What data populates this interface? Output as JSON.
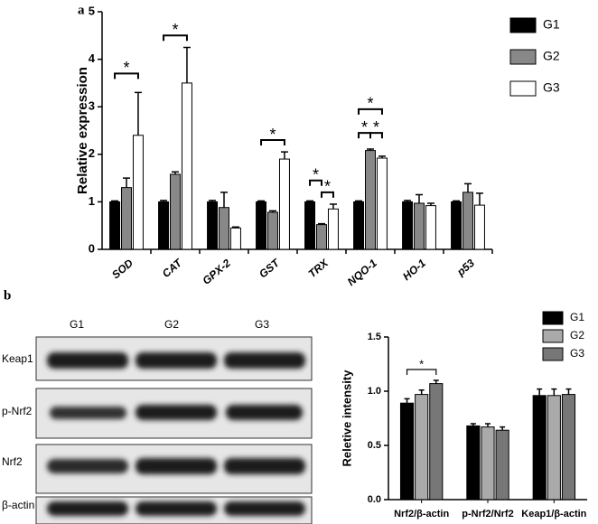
{
  "panels": [
    "a",
    "b"
  ],
  "blot": {
    "columns": [
      "G1",
      "G2",
      "G3"
    ],
    "rows": [
      "Keap1",
      "p-Nrf2",
      "Nrf2",
      "β-actin"
    ]
  },
  "chart_data": [
    {
      "type": "bar",
      "ylabel": "Relative expression",
      "categories": [
        "SOD",
        "CAT",
        "GPX-2",
        "GST",
        "TRX",
        "NQO-1",
        "HO-1",
        "p53"
      ],
      "series": [
        {
          "name": "G1",
          "color": "#000000",
          "values": [
            1.0,
            1.0,
            1.0,
            1.0,
            1.0,
            1.0,
            1.0,
            1.0
          ],
          "errors": [
            0.02,
            0.03,
            0.03,
            0.02,
            0.02,
            0.02,
            0.03,
            0.02
          ]
        },
        {
          "name": "G2",
          "color": "#888888",
          "values": [
            1.3,
            1.58,
            0.88,
            0.78,
            0.52,
            2.08,
            0.97,
            1.2
          ],
          "errors": [
            0.2,
            0.05,
            0.32,
            0.03,
            0.02,
            0.03,
            0.18,
            0.18
          ]
        },
        {
          "name": "G3",
          "color": "#ffffff",
          "values": [
            2.4,
            3.5,
            0.45,
            1.9,
            0.85,
            1.92,
            0.92,
            0.93
          ],
          "errors": [
            0.9,
            0.75,
            0.02,
            0.15,
            0.1,
            0.04,
            0.05,
            0.25
          ]
        }
      ],
      "ylim": [
        0,
        5
      ],
      "yticks": [
        0,
        1,
        2,
        3,
        4,
        5
      ],
      "significance": [
        {
          "category": "SOD",
          "from": "G1",
          "to": "G3",
          "y": 3.7,
          "label": "*"
        },
        {
          "category": "CAT",
          "from": "G1",
          "to": "G3",
          "y": 4.5,
          "label": "*"
        },
        {
          "category": "GST",
          "from": "G1",
          "to": "G3",
          "y": 2.3,
          "label": "*"
        },
        {
          "category": "TRX",
          "from": "G1",
          "to": "G2",
          "y": 1.45,
          "label": "*"
        },
        {
          "category": "TRX",
          "from": "G2",
          "to": "G3",
          "y": 1.2,
          "label": "*"
        },
        {
          "category": "NQO-1",
          "from": "G1",
          "to": "G2",
          "y": 2.45,
          "label": "*"
        },
        {
          "category": "NQO-1",
          "from": "G2",
          "to": "G3",
          "y": 2.45,
          "label": "*"
        },
        {
          "category": "NQO-1",
          "from": "G1",
          "to": "G3",
          "y": 2.95,
          "label": "*"
        }
      ]
    },
    {
      "type": "bar",
      "ylabel": "Reletive intensity",
      "categories": [
        "Nrf2/β-actin",
        "p-Nrf2/Nrf2",
        "Keap1/β-actin"
      ],
      "series": [
        {
          "name": "G1",
          "color": "#000000",
          "values": [
            0.89,
            0.68,
            0.96
          ],
          "errors": [
            0.04,
            0.02,
            0.06
          ]
        },
        {
          "name": "G2",
          "color": "#aaaaaa",
          "values": [
            0.97,
            0.67,
            0.96
          ],
          "errors": [
            0.04,
            0.03,
            0.06
          ]
        },
        {
          "name": "G3",
          "color": "#777777",
          "values": [
            1.07,
            0.64,
            0.97
          ],
          "errors": [
            0.03,
            0.03,
            0.05
          ]
        }
      ],
      "ylim": [
        0,
        1.5
      ],
      "yticks": [
        {
          "value": 0,
          "label": "0.0"
        },
        0.5,
        {
          "value": 1,
          "label": "1.0"
        },
        1.5
      ],
      "significance": [
        {
          "category": "Nrf2/β-actin",
          "from": "G1",
          "to": "G3",
          "y": 1.2,
          "label": "*"
        }
      ]
    }
  ]
}
